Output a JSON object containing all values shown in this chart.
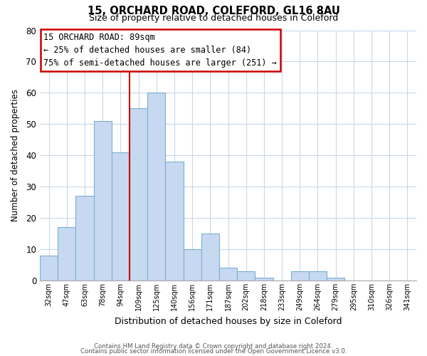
{
  "title1": "15, ORCHARD ROAD, COLEFORD, GL16 8AU",
  "title2": "Size of property relative to detached houses in Coleford",
  "xlabel": "Distribution of detached houses by size in Coleford",
  "ylabel": "Number of detached properties",
  "bar_labels": [
    "32sqm",
    "47sqm",
    "63sqm",
    "78sqm",
    "94sqm",
    "109sqm",
    "125sqm",
    "140sqm",
    "156sqm",
    "171sqm",
    "187sqm",
    "202sqm",
    "218sqm",
    "233sqm",
    "249sqm",
    "264sqm",
    "279sqm",
    "295sqm",
    "310sqm",
    "326sqm",
    "341sqm"
  ],
  "bar_values": [
    8,
    17,
    27,
    51,
    41,
    55,
    60,
    38,
    10,
    15,
    4,
    3,
    1,
    0,
    3,
    3,
    1,
    0,
    0,
    0,
    0
  ],
  "bar_color": "#c6d9f0",
  "bar_edge_color": "#7bafd4",
  "vline_x_index": 4,
  "vline_color": "#cc0000",
  "annotation_title": "15 ORCHARD ROAD: 89sqm",
  "annotation_line1": "← 25% of detached houses are smaller (84)",
  "annotation_line2": "75% of semi-detached houses are larger (251) →",
  "annotation_box_color": "#ffffff",
  "annotation_box_edge": "#cc0000",
  "ylim": [
    0,
    80
  ],
  "yticks": [
    0,
    10,
    20,
    30,
    40,
    50,
    60,
    70,
    80
  ],
  "footer1": "Contains HM Land Registry data © Crown copyright and database right 2024.",
  "footer2": "Contains public sector information licensed under the Open Government Licence v3.0.",
  "bg_color": "#ffffff",
  "grid_color": "#c8d8e8"
}
